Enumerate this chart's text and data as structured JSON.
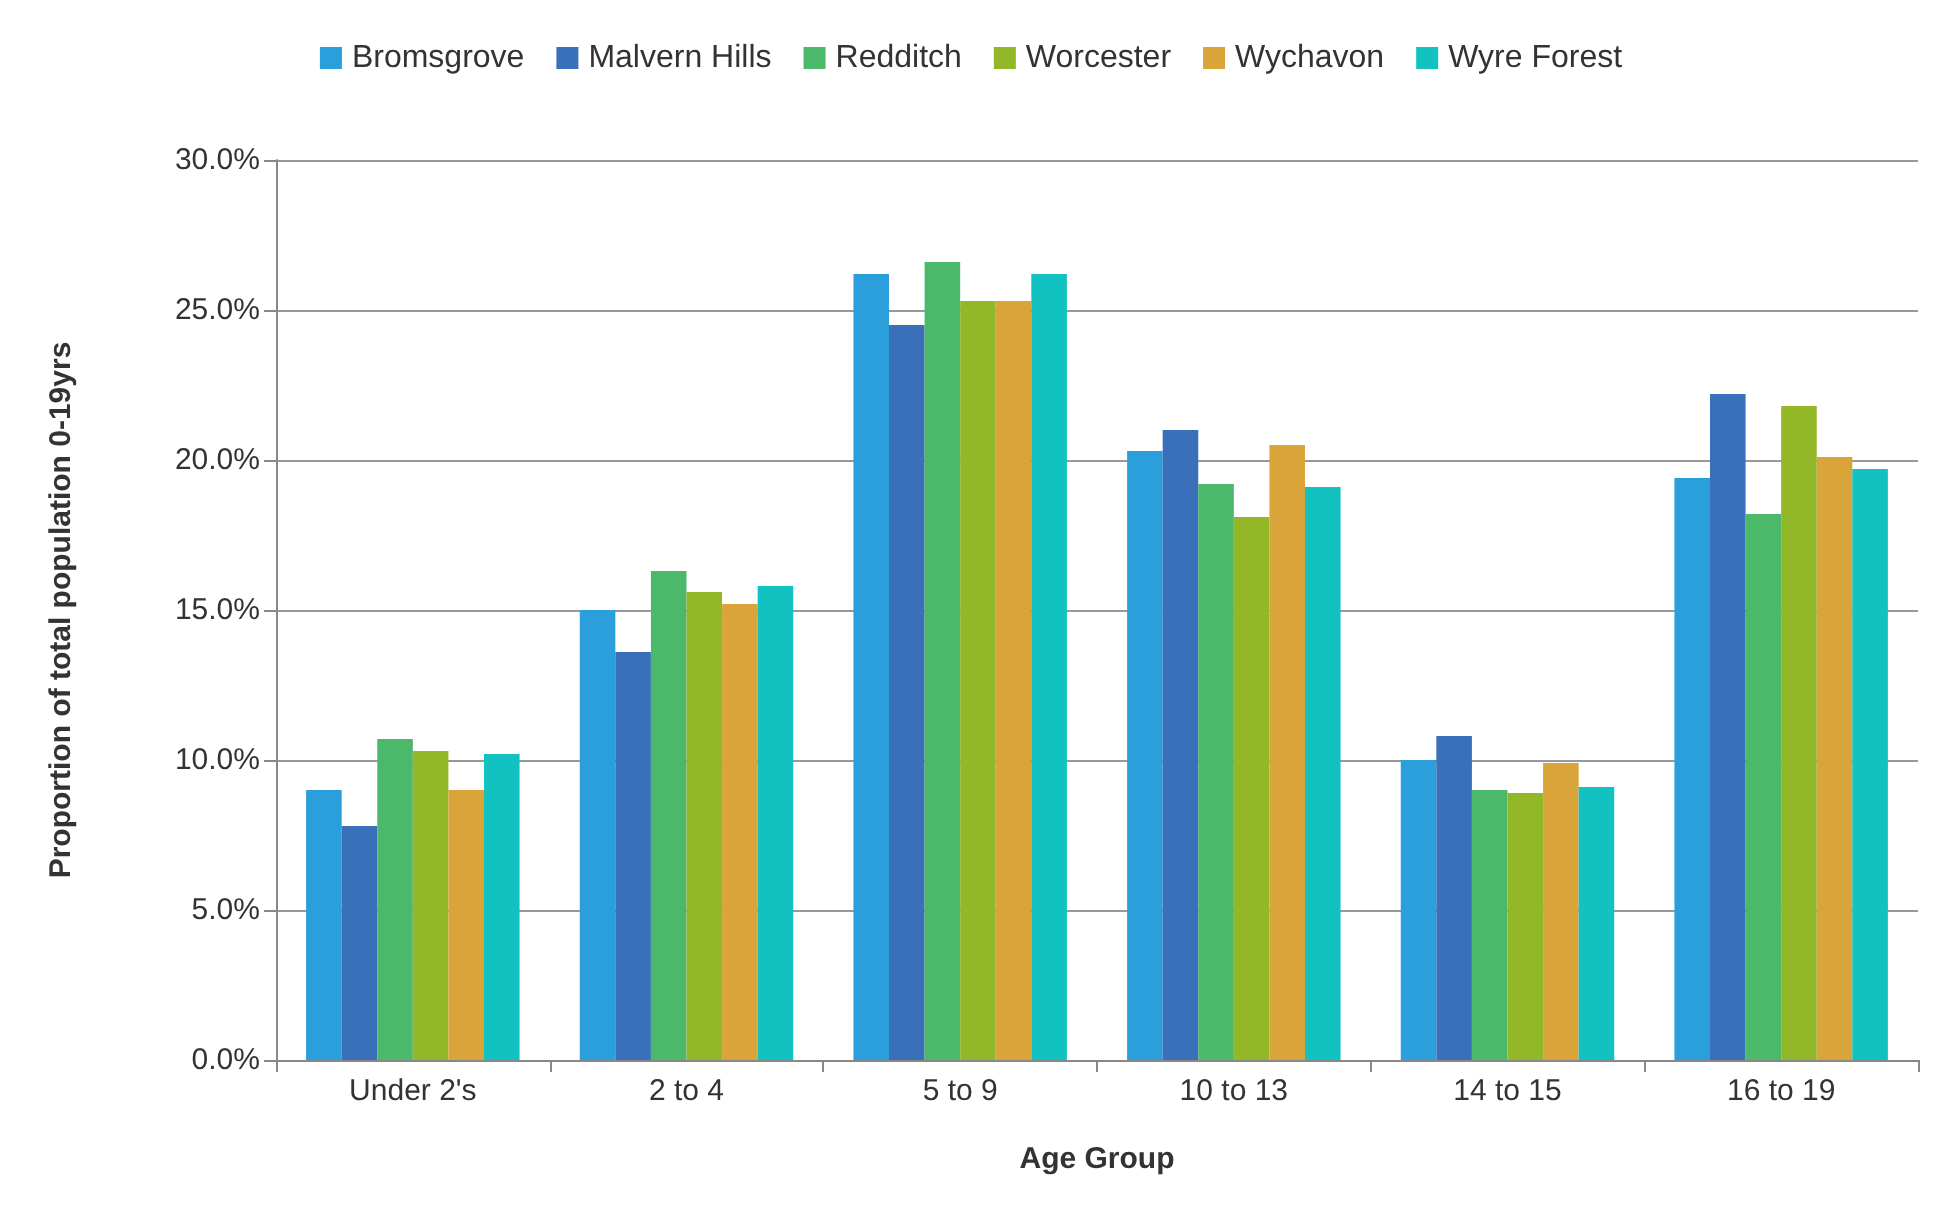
{
  "chart_data": {
    "type": "bar",
    "xlabel": "Age Group",
    "ylabel": "Proportion of total population 0-19yrs",
    "categories": [
      "Under 2's",
      "2 to 4",
      "5 to 9",
      "10 to 13",
      "14 to 15",
      "16 to 19"
    ],
    "series": [
      {
        "name": "Bromsgrove",
        "color": "#2a9fdc",
        "values": [
          9.0,
          15.0,
          26.2,
          20.3,
          10.0,
          19.4
        ]
      },
      {
        "name": "Malvern Hills",
        "color": "#3a6fb9",
        "values": [
          7.8,
          13.6,
          24.5,
          21.0,
          10.8,
          22.2
        ]
      },
      {
        "name": "Redditch",
        "color": "#4cb86a",
        "values": [
          10.7,
          16.3,
          26.6,
          19.2,
          9.0,
          18.2
        ]
      },
      {
        "name": "Worcester",
        "color": "#92b82a",
        "values": [
          10.3,
          15.6,
          25.3,
          18.1,
          8.9,
          21.8
        ]
      },
      {
        "name": "Wychavon",
        "color": "#d9a53a",
        "values": [
          9.0,
          15.2,
          25.3,
          20.5,
          9.9,
          20.1
        ]
      },
      {
        "name": "Wyre Forest",
        "color": "#12c2c0",
        "values": [
          10.2,
          15.8,
          26.2,
          19.1,
          9.1,
          19.7
        ]
      }
    ],
    "ylim": [
      0,
      30
    ],
    "yticks": [
      {
        "value": 0,
        "label": "0.0%"
      },
      {
        "value": 5,
        "label": "5.0%"
      },
      {
        "value": 10,
        "label": "10.0%"
      },
      {
        "value": 15,
        "label": "15.0%"
      },
      {
        "value": 20,
        "label": "20.0%"
      },
      {
        "value": 25,
        "label": "25.0%"
      },
      {
        "value": 30,
        "label": "30.0%"
      }
    ],
    "grid": "y",
    "legend": "top"
  }
}
